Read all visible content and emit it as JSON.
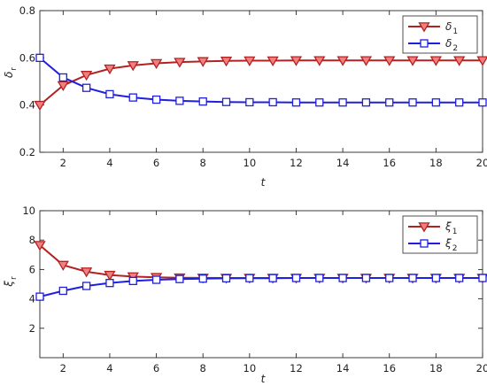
{
  "chart_data": [
    {
      "type": "line",
      "xlabel": "t",
      "ylabel": "δ",
      "ylabel_sub": "r",
      "xlim": [
        1,
        20
      ],
      "ylim": [
        0.2,
        0.8
      ],
      "xticks": [
        "2",
        "4",
        "6",
        "8",
        "10",
        "12",
        "14",
        "16",
        "18",
        "20"
      ],
      "yticks": [
        "0.2",
        "0.4",
        "0.6",
        "0.8"
      ],
      "grid": false,
      "legend_position": "top-right",
      "x": [
        1,
        2,
        3,
        4,
        5,
        6,
        7,
        8,
        9,
        10,
        11,
        12,
        13,
        14,
        15,
        16,
        17,
        18,
        19,
        20
      ],
      "series": [
        {
          "name": "δ",
          "name_sub": "1",
          "color": "#B22222",
          "marker": "triangle-down",
          "values": [
            0.4,
            0.483,
            0.527,
            0.554,
            0.568,
            0.577,
            0.582,
            0.585,
            0.587,
            0.588,
            0.588,
            0.589,
            0.589,
            0.589,
            0.589,
            0.589,
            0.589,
            0.589,
            0.589,
            0.589
          ]
        },
        {
          "name": "δ",
          "name_sub": "2",
          "color": "#1F1FE0",
          "marker": "square",
          "values": [
            0.6,
            0.517,
            0.473,
            0.446,
            0.432,
            0.423,
            0.418,
            0.415,
            0.413,
            0.412,
            0.412,
            0.411,
            0.411,
            0.411,
            0.411,
            0.411,
            0.411,
            0.411,
            0.411,
            0.411
          ]
        }
      ]
    },
    {
      "type": "line",
      "xlabel": "t",
      "ylabel": "ξ",
      "ylabel_sub": "r",
      "xlim": [
        1,
        20
      ],
      "ylim": [
        0,
        10
      ],
      "xticks": [
        "2",
        "4",
        "6",
        "8",
        "10",
        "12",
        "14",
        "16",
        "18",
        "20"
      ],
      "yticks": [
        "2",
        "4",
        "6",
        "8",
        "10"
      ],
      "grid": false,
      "legend_position": "top-right",
      "x": [
        1,
        2,
        3,
        4,
        5,
        6,
        7,
        8,
        9,
        10,
        11,
        12,
        13,
        14,
        15,
        16,
        17,
        18,
        19,
        20
      ],
      "series": [
        {
          "name": "ξ",
          "name_sub": "1",
          "color": "#B22222",
          "marker": "triangle-down",
          "values": [
            7.65,
            6.3,
            5.85,
            5.62,
            5.52,
            5.47,
            5.44,
            5.43,
            5.42,
            5.42,
            5.42,
            5.42,
            5.42,
            5.42,
            5.42,
            5.42,
            5.42,
            5.42,
            5.42,
            5.42
          ]
        },
        {
          "name": "ξ",
          "name_sub": "2",
          "color": "#1F1FE0",
          "marker": "square",
          "values": [
            4.15,
            4.55,
            4.88,
            5.08,
            5.22,
            5.3,
            5.35,
            5.38,
            5.4,
            5.41,
            5.41,
            5.42,
            5.42,
            5.42,
            5.42,
            5.42,
            5.42,
            5.42,
            5.42,
            5.42
          ]
        }
      ]
    }
  ]
}
